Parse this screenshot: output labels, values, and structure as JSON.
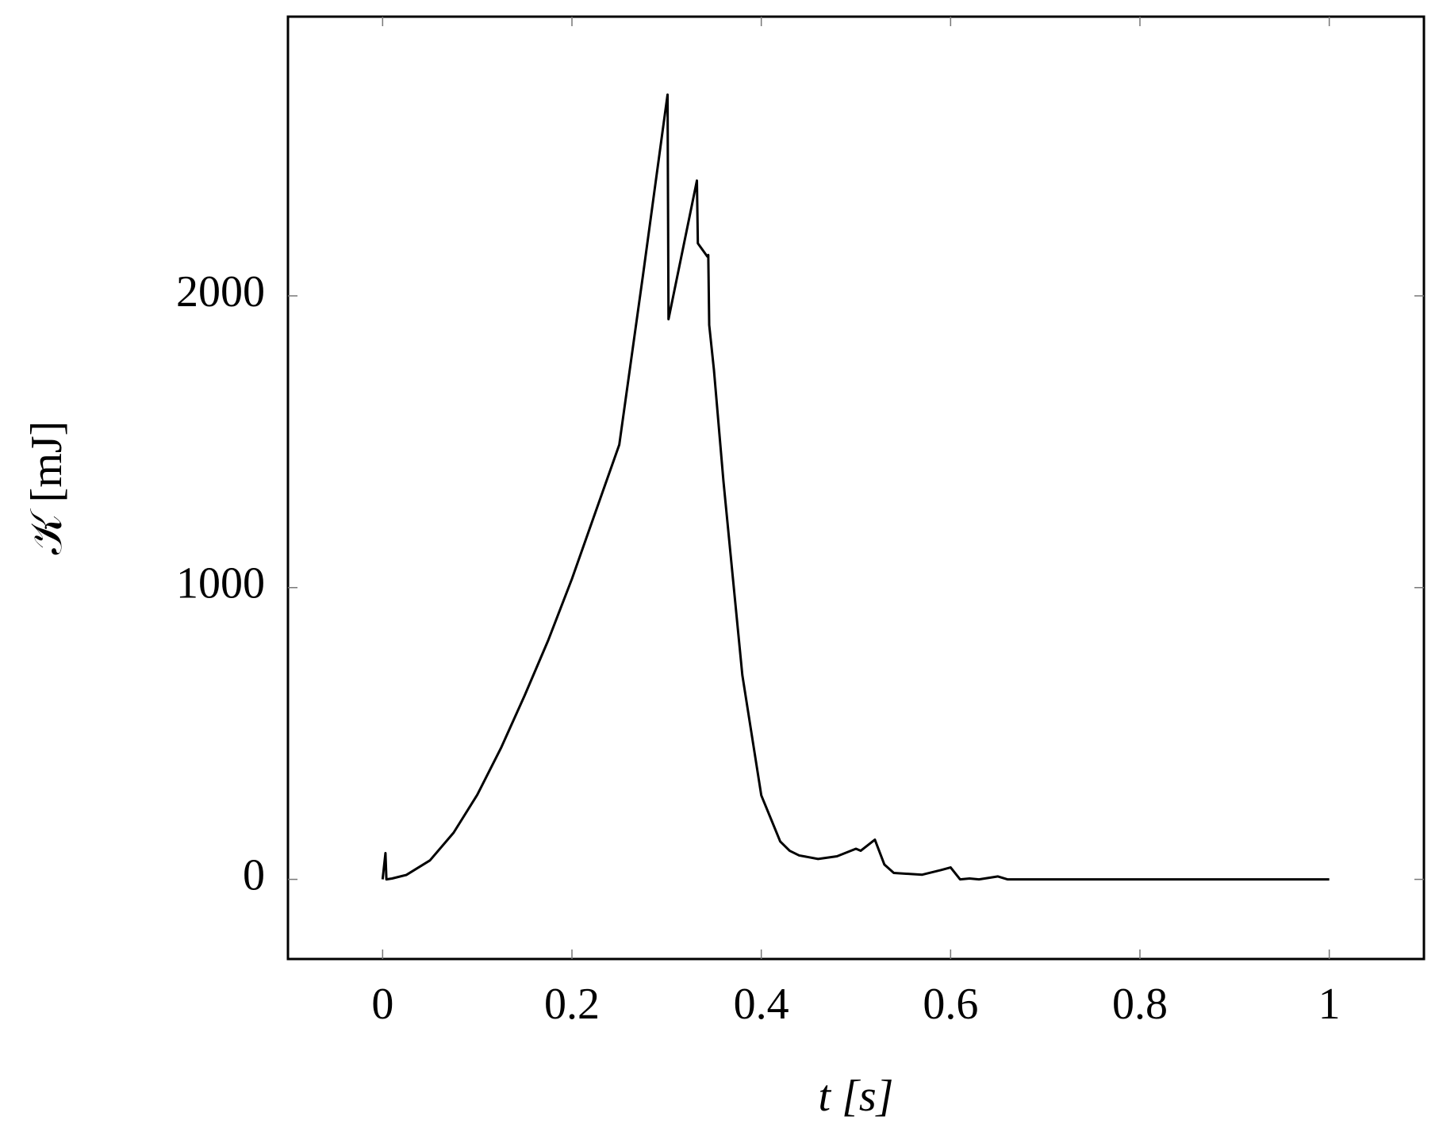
{
  "chart_data": {
    "type": "line",
    "xlabel": "t [s]",
    "ylabel": "𝒦 [mJ]",
    "x": [
      0,
      0.003,
      0.004,
      0.01,
      0.025,
      0.05,
      0.075,
      0.1,
      0.125,
      0.15,
      0.175,
      0.2,
      0.225,
      0.25,
      0.275,
      0.301,
      0.302,
      0.332,
      0.333,
      0.343,
      0.344,
      0.345,
      0.35,
      0.36,
      0.38,
      0.4,
      0.42,
      0.43,
      0.44,
      0.46,
      0.48,
      0.5,
      0.505,
      0.52,
      0.53,
      0.54,
      0.57,
      0.59,
      0.6,
      0.61,
      0.62,
      0.63,
      0.65,
      0.66,
      0.67,
      1
    ],
    "values": [
      0,
      90,
      0,
      3,
      15,
      65,
      160,
      290,
      450,
      630,
      820,
      1030,
      1260,
      1490,
      2070,
      2690,
      1920,
      2395,
      2180,
      2135,
      2140,
      1900,
      1746,
      1366,
      700,
      288,
      130,
      98,
      82,
      70,
      79,
      105,
      98,
      136,
      51,
      22,
      16,
      32,
      41,
      0,
      3,
      0,
      10,
      0,
      0,
      0
    ],
    "color": "#000000",
    "xlim": [
      -0.1,
      1.1
    ],
    "ylim": [
      -273,
      2957
    ],
    "xticks": [
      0,
      0.2,
      0.4,
      0.6,
      0.8,
      1
    ],
    "yticks": [
      0,
      1000,
      2000
    ],
    "grid": false
  }
}
